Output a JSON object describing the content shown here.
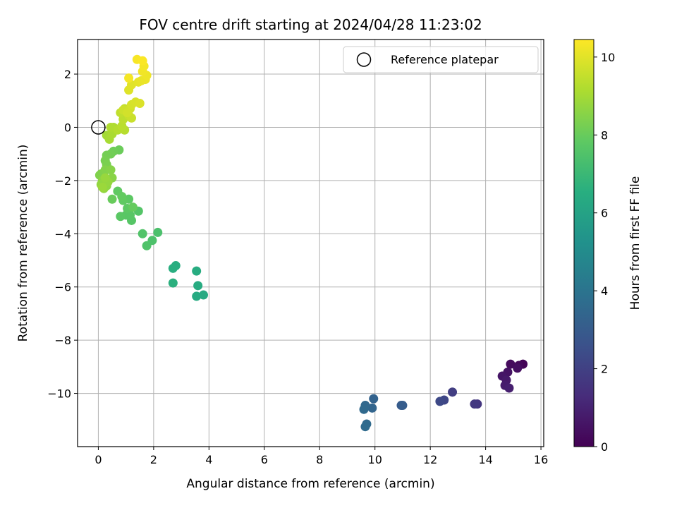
{
  "chart_data": {
    "type": "scatter",
    "title": "FOV centre drift starting at 2024/04/28 11:23:02",
    "xlabel": "Angular distance from reference (arcmin)",
    "ylabel": "Rotation from reference (arcmin)",
    "xlim": [
      -0.75,
      16.1
    ],
    "ylim": [
      -12.0,
      3.3
    ],
    "xticks": [
      0,
      2,
      4,
      6,
      8,
      10,
      12,
      14,
      16
    ],
    "yticks": [
      -10,
      -8,
      -6,
      -4,
      -2,
      0,
      2
    ],
    "grid": true,
    "legend": {
      "location": "upper right",
      "entries": [
        "Reference platepar"
      ]
    },
    "reference_point": {
      "x": 0,
      "y": 0
    },
    "colorbar": {
      "label": "Hours from first FF file",
      "colormap": "viridis",
      "range": [
        0,
        10.45
      ],
      "ticks": [
        0,
        2,
        4,
        6,
        8,
        10
      ]
    },
    "points": [
      [
        15.35,
        -8.9,
        0.1
      ],
      [
        15.2,
        -8.95,
        0.2
      ],
      [
        14.9,
        -8.9,
        0.3
      ],
      [
        15.15,
        -9.05,
        0.4
      ],
      [
        14.8,
        -9.2,
        0.5
      ],
      [
        14.6,
        -9.35,
        0.6
      ],
      [
        14.75,
        -9.5,
        0.7
      ],
      [
        14.7,
        -9.7,
        0.8
      ],
      [
        14.85,
        -9.8,
        0.9
      ],
      [
        13.7,
        -10.4,
        1.6
      ],
      [
        13.6,
        -10.4,
        1.7
      ],
      [
        12.8,
        -9.95,
        1.9
      ],
      [
        12.5,
        -10.25,
        2.2
      ],
      [
        12.35,
        -10.3,
        2.3
      ],
      [
        10.95,
        -10.45,
        3.0
      ],
      [
        11.0,
        -10.45,
        3.05
      ],
      [
        9.95,
        -10.2,
        3.3
      ],
      [
        9.9,
        -10.55,
        3.4
      ],
      [
        9.65,
        -10.45,
        3.5
      ],
      [
        9.6,
        -10.6,
        3.55
      ],
      [
        9.7,
        -11.15,
        3.6
      ],
      [
        9.65,
        -11.25,
        3.65
      ],
      [
        3.8,
        -6.3,
        6.3
      ],
      [
        3.55,
        -6.35,
        6.35
      ],
      [
        3.6,
        -5.95,
        6.4
      ],
      [
        3.55,
        -5.4,
        6.45
      ],
      [
        2.8,
        -5.2,
        6.5
      ],
      [
        2.7,
        -5.3,
        6.55
      ],
      [
        2.7,
        -5.85,
        6.6
      ],
      [
        2.15,
        -3.95,
        7.4
      ],
      [
        1.95,
        -4.25,
        7.45
      ],
      [
        1.75,
        -4.45,
        7.5
      ],
      [
        1.6,
        -4.0,
        7.55
      ],
      [
        1.45,
        -3.15,
        7.6
      ],
      [
        1.2,
        -3.5,
        7.65
      ],
      [
        1.15,
        -3.3,
        7.7
      ],
      [
        1.0,
        -3.3,
        7.7
      ],
      [
        0.8,
        -3.35,
        7.75
      ],
      [
        1.1,
        -2.7,
        7.8
      ],
      [
        1.05,
        -3.05,
        7.8
      ],
      [
        0.9,
        -2.75,
        7.85
      ],
      [
        0.7,
        -2.4,
        7.85
      ],
      [
        0.85,
        -2.6,
        7.9
      ],
      [
        1.25,
        -3.0,
        7.95
      ],
      [
        0.5,
        -2.7,
        8.0
      ],
      [
        0.75,
        -0.85,
        8.05
      ],
      [
        0.55,
        -0.9,
        8.1
      ],
      [
        0.45,
        -1.0,
        8.15
      ],
      [
        0.3,
        -1.05,
        8.2
      ],
      [
        0.25,
        -1.25,
        8.25
      ],
      [
        0.3,
        -1.4,
        8.3
      ],
      [
        0.2,
        -1.7,
        8.35
      ],
      [
        0.1,
        -1.75,
        8.4
      ],
      [
        0.05,
        -1.8,
        8.4
      ],
      [
        0.25,
        -1.6,
        8.45
      ],
      [
        0.45,
        -1.6,
        8.5
      ],
      [
        0.5,
        -1.9,
        8.55
      ],
      [
        0.15,
        -2.0,
        8.6
      ],
      [
        0.3,
        -2.2,
        8.65
      ],
      [
        0.1,
        -2.15,
        8.7
      ],
      [
        0.2,
        -2.3,
        8.7
      ],
      [
        0.35,
        -2.05,
        8.75
      ],
      [
        0.25,
        -1.9,
        8.8
      ],
      [
        0.15,
        -2.25,
        8.85
      ],
      [
        0.3,
        -0.3,
        9.0
      ],
      [
        0.4,
        -0.45,
        9.05
      ],
      [
        0.5,
        -0.25,
        9.1
      ],
      [
        0.55,
        0.0,
        9.15
      ],
      [
        0.45,
        0.0,
        9.2
      ],
      [
        0.7,
        -0.1,
        9.25
      ],
      [
        0.95,
        -0.1,
        9.3
      ],
      [
        0.85,
        0.05,
        9.35
      ],
      [
        0.9,
        0.3,
        9.4
      ],
      [
        0.8,
        0.55,
        9.45
      ],
      [
        0.95,
        0.7,
        9.5
      ],
      [
        1.1,
        0.45,
        9.55
      ],
      [
        1.2,
        0.35,
        9.6
      ],
      [
        0.9,
        0.65,
        9.65
      ],
      [
        1.15,
        0.7,
        9.7
      ],
      [
        1.05,
        0.55,
        9.75
      ],
      [
        1.2,
        0.85,
        9.8
      ],
      [
        1.35,
        0.95,
        9.85
      ],
      [
        1.5,
        0.9,
        9.9
      ],
      [
        1.1,
        1.4,
        9.95
      ],
      [
        1.2,
        1.6,
        10.0
      ],
      [
        1.45,
        1.7,
        10.05
      ],
      [
        1.55,
        1.75,
        10.1
      ],
      [
        1.7,
        1.8,
        10.15
      ],
      [
        1.75,
        1.95,
        10.2
      ],
      [
        1.6,
        2.1,
        10.25
      ],
      [
        1.65,
        2.3,
        10.3
      ],
      [
        1.4,
        2.55,
        10.35
      ],
      [
        1.6,
        2.5,
        10.4
      ],
      [
        1.1,
        1.85,
        10.3
      ]
    ]
  }
}
